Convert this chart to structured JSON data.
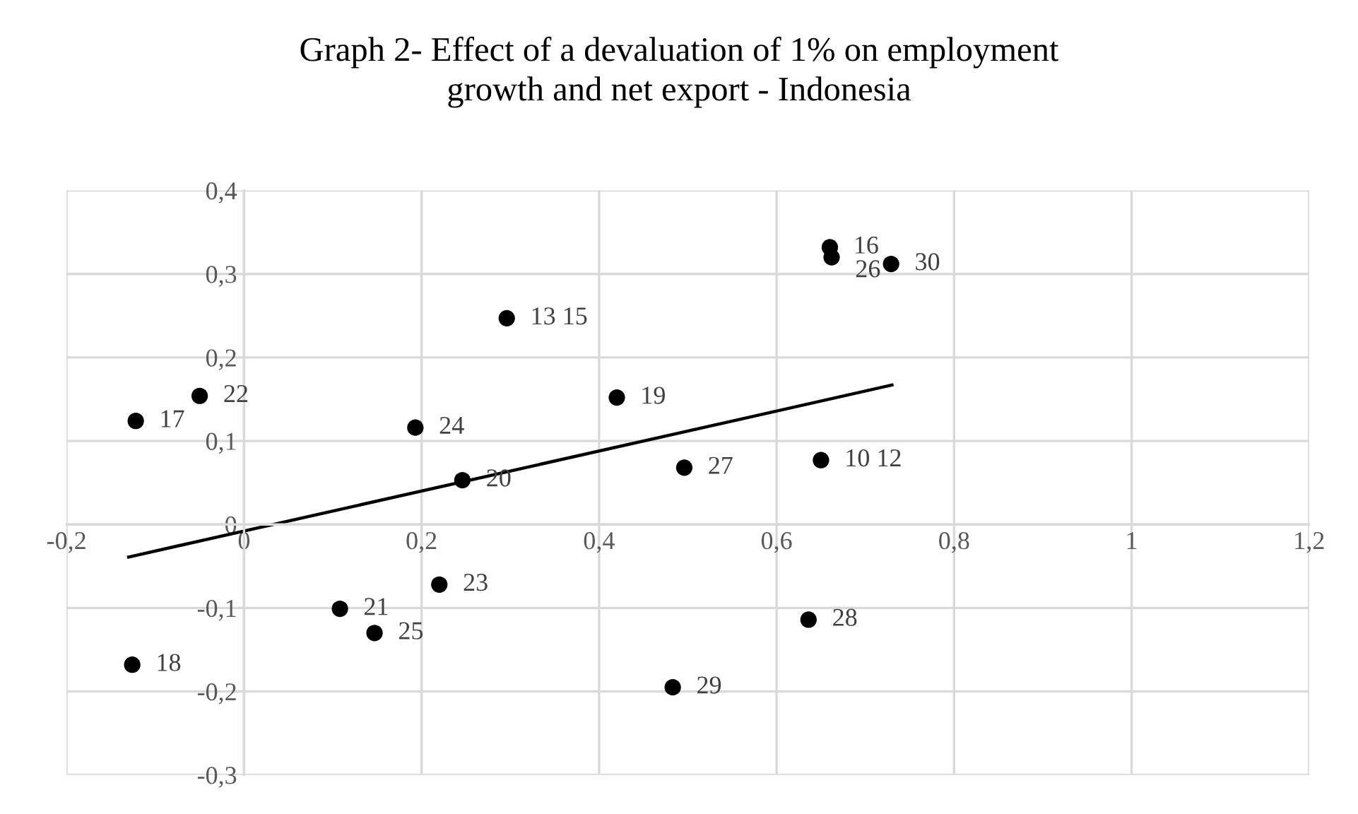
{
  "chart_data": {
    "type": "scatter",
    "title": "Graph 2- Effect of a devaluation of 1% on employment\ngrowth and net export - Indonesia",
    "series": [
      {
        "type": "scatter",
        "color": "#000000",
        "marker": "circle",
        "x": [
          -0.122,
          -0.05,
          0.193,
          0.246,
          0.296,
          0.42,
          0.496,
          0.65,
          0.66,
          0.662,
          0.729,
          0.22,
          0.108,
          0.147,
          -0.126,
          0.483,
          0.636
        ],
        "values": [
          0.124,
          0.154,
          0.116,
          0.053,
          0.247,
          0.152,
          0.068,
          0.077,
          0.332,
          0.32,
          0.312,
          -0.072,
          -0.101,
          -0.13,
          -0.168,
          -0.195,
          -0.114
        ]
      },
      {
        "type": "line",
        "color": "#000000",
        "marker": "none",
        "line_style": "solid",
        "x": [
          -0.13,
          0.73
        ],
        "values": [
          -0.039,
          0.167
        ]
      }
    ],
    "annotations": [
      {
        "text": "17",
        "x": -0.122,
        "y": 0.124
      },
      {
        "text": "22",
        "x": -0.05,
        "y": 0.154
      },
      {
        "text": "24",
        "x": 0.193,
        "y": 0.116
      },
      {
        "text": "20",
        "x": 0.246,
        "y": 0.053
      },
      {
        "text": "13 15",
        "x": 0.296,
        "y": 0.247
      },
      {
        "text": "19",
        "x": 0.42,
        "y": 0.152
      },
      {
        "text": "27",
        "x": 0.496,
        "y": 0.068
      },
      {
        "text": "10 12",
        "x": 0.65,
        "y": 0.077
      },
      {
        "text": "16",
        "x": 0.66,
        "y": 0.332
      },
      {
        "text": "26",
        "x": 0.662,
        "y": 0.32
      },
      {
        "text": "30",
        "x": 0.729,
        "y": 0.312
      },
      {
        "text": "23",
        "x": 0.22,
        "y": -0.072
      },
      {
        "text": "21",
        "x": 0.108,
        "y": -0.101
      },
      {
        "text": "25",
        "x": 0.147,
        "y": -0.13
      },
      {
        "text": "18",
        "x": -0.126,
        "y": -0.168
      },
      {
        "text": "29",
        "x": 0.483,
        "y": -0.195
      },
      {
        "text": "28",
        "x": 0.636,
        "y": -0.114
      }
    ],
    "xlim": [
      -0.2,
      1.2
    ],
    "ylim": [
      -0.3,
      0.4
    ],
    "xticks": [
      {
        "value": -0.2,
        "label": "-0,2"
      },
      0,
      {
        "value": 0.2,
        "label": "0,2"
      },
      {
        "value": 0.4,
        "label": "0,4"
      },
      {
        "value": 0.6,
        "label": "0,6"
      },
      {
        "value": 0.8,
        "label": "0,8"
      },
      1,
      {
        "value": 1.2,
        "label": "1,2"
      }
    ],
    "yticks": [
      {
        "value": -0.3,
        "label": "-0,3"
      },
      {
        "value": -0.2,
        "label": "-0,2"
      },
      {
        "value": -0.1,
        "label": "-0,1"
      },
      0,
      {
        "value": 0.1,
        "label": "0,1"
      },
      {
        "value": 0.2,
        "label": "0,2"
      },
      {
        "value": 0.3,
        "label": "0,3"
      },
      {
        "value": 0.4,
        "label": "0,4"
      }
    ],
    "grid": true,
    "legend": false
  }
}
